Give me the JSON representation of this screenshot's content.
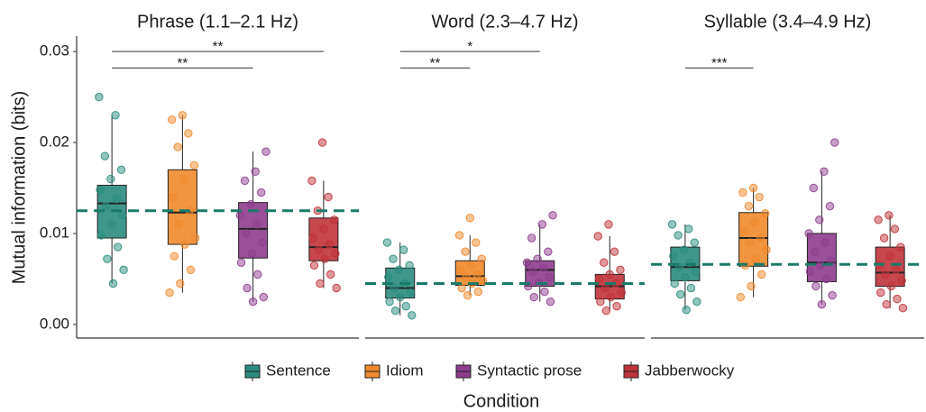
{
  "chart_data": {
    "type": "boxplot",
    "y_label": "Mutual information (bits)",
    "x_label": "Condition",
    "ylim": [
      -0.0015,
      0.0317
    ],
    "yticks": [
      {
        "value": 0,
        "label": "0.00"
      },
      {
        "value": 0.01,
        "label": "0.01"
      },
      {
        "value": 0.02,
        "label": "0.02"
      },
      {
        "value": 0.03,
        "label": "0.03"
      }
    ],
    "legend": "bottom",
    "series": [
      {
        "name": "Sentence",
        "color": "#2a8c7e"
      },
      {
        "name": "Idiom",
        "color": "#f08a2c"
      },
      {
        "name": "Syntactic prose",
        "color": "#8e3d8e"
      },
      {
        "name": "Jabberwocky",
        "color": "#c0333a"
      }
    ],
    "facets": [
      {
        "title": "Phrase (1.1–2.1 Hz)",
        "reference_line": 0.0125,
        "groups": [
          {
            "whisker_low": 0.0045,
            "q1": 0.0095,
            "median": 0.0133,
            "q3": 0.0153,
            "whisker_high": 0.023,
            "points": [
              0.025,
              0.023,
              0.0185,
              0.017,
              0.016,
              0.0148,
              0.0138,
              0.013,
              0.012,
              0.011,
              0.0098,
              0.0085,
              0.0072,
              0.006,
              0.0045
            ]
          },
          {
            "whisker_low": 0.0035,
            "q1": 0.0088,
            "median": 0.0123,
            "q3": 0.017,
            "whisker_high": 0.023,
            "points": [
              0.023,
              0.0225,
              0.021,
              0.0195,
              0.0175,
              0.016,
              0.014,
              0.0125,
              0.011,
              0.0095,
              0.0088,
              0.0075,
              0.006,
              0.0045,
              0.0035
            ]
          },
          {
            "whisker_low": 0.0025,
            "q1": 0.0073,
            "median": 0.0105,
            "q3": 0.0134,
            "whisker_high": 0.019,
            "points": [
              0.019,
              0.0168,
              0.0158,
              0.0145,
              0.0132,
              0.012,
              0.011,
              0.01,
              0.009,
              0.0078,
              0.0068,
              0.0055,
              0.004,
              0.003,
              0.0025
            ]
          },
          {
            "whisker_low": 0.004,
            "q1": 0.007,
            "median": 0.0085,
            "q3": 0.0117,
            "whisker_high": 0.0158,
            "points": [
              0.02,
              0.0158,
              0.014,
              0.0125,
              0.0115,
              0.0105,
              0.0095,
              0.0088,
              0.0082,
              0.0078,
              0.0072,
              0.0065,
              0.0055,
              0.0045,
              0.004
            ]
          }
        ],
        "brackets": [
          {
            "from": 0,
            "to": 3,
            "y": 0.03,
            "label": "**"
          },
          {
            "from": 0,
            "to": 2,
            "y": 0.0282,
            "label": "**"
          }
        ]
      },
      {
        "title": "Word (2.3–4.7 Hz)",
        "reference_line": 0.0045,
        "groups": [
          {
            "whisker_low": 0.001,
            "q1": 0.0029,
            "median": 0.004,
            "q3": 0.0062,
            "whisker_high": 0.009,
            "points": [
              0.009,
              0.0082,
              0.0072,
              0.0065,
              0.006,
              0.0052,
              0.0045,
              0.004,
              0.0035,
              0.003,
              0.0025,
              0.002,
              0.0015,
              0.001
            ]
          },
          {
            "whisker_low": 0.0032,
            "q1": 0.0043,
            "median": 0.0053,
            "q3": 0.007,
            "whisker_high": 0.0098,
            "points": [
              0.0117,
              0.0098,
              0.009,
              0.008,
              0.0072,
              0.0065,
              0.006,
              0.0055,
              0.0052,
              0.0048,
              0.0045,
              0.004,
              0.0036,
              0.0032
            ]
          },
          {
            "whisker_low": 0.0025,
            "q1": 0.0042,
            "median": 0.006,
            "q3": 0.007,
            "whisker_high": 0.011,
            "points": [
              0.012,
              0.011,
              0.0095,
              0.008,
              0.0072,
              0.0068,
              0.0062,
              0.0058,
              0.0052,
              0.0046,
              0.0042,
              0.0036,
              0.003,
              0.0025
            ]
          },
          {
            "whisker_low": 0.0015,
            "q1": 0.0028,
            "median": 0.0042,
            "q3": 0.0055,
            "whisker_high": 0.0097,
            "points": [
              0.011,
              0.0097,
              0.008,
              0.0068,
              0.006,
              0.0055,
              0.005,
              0.0045,
              0.004,
              0.0035,
              0.003,
              0.0025,
              0.002,
              0.0015
            ]
          }
        ],
        "brackets": [
          {
            "from": 0,
            "to": 2,
            "y": 0.03,
            "label": "*"
          },
          {
            "from": 0,
            "to": 1,
            "y": 0.0282,
            "label": "**"
          }
        ]
      },
      {
        "title": "Syllable (3.4–4.9 Hz)",
        "reference_line": 0.0066,
        "groups": [
          {
            "whisker_low": 0.0016,
            "q1": 0.0048,
            "median": 0.0063,
            "q3": 0.0085,
            "whisker_high": 0.011,
            "points": [
              0.011,
              0.0105,
              0.0098,
              0.009,
              0.0082,
              0.0075,
              0.0068,
              0.0063,
              0.0058,
              0.0052,
              0.0045,
              0.004,
              0.0033,
              0.0025,
              0.0016
            ]
          },
          {
            "whisker_low": 0.003,
            "q1": 0.0064,
            "median": 0.0095,
            "q3": 0.0123,
            "whisker_high": 0.015,
            "points": [
              0.015,
              0.0145,
              0.014,
              0.013,
              0.0122,
              0.0112,
              0.0103,
              0.0095,
              0.009,
              0.0082,
              0.0072,
              0.0065,
              0.0055,
              0.0042,
              0.003
            ]
          },
          {
            "whisker_low": 0.0022,
            "q1": 0.0047,
            "median": 0.0068,
            "q3": 0.01,
            "whisker_high": 0.0168,
            "points": [
              0.02,
              0.0168,
              0.015,
              0.013,
              0.0115,
              0.01,
              0.009,
              0.008,
              0.007,
              0.0065,
              0.0058,
              0.005,
              0.0042,
              0.0032,
              0.0022
            ]
          },
          {
            "whisker_low": 0.0018,
            "q1": 0.0042,
            "median": 0.0057,
            "q3": 0.0085,
            "whisker_high": 0.012,
            "points": [
              0.012,
              0.0115,
              0.0105,
              0.0095,
              0.0085,
              0.0075,
              0.0065,
              0.006,
              0.0055,
              0.0048,
              0.0042,
              0.0035,
              0.0028,
              0.0022,
              0.0018
            ]
          }
        ],
        "brackets": [
          {
            "from": 0,
            "to": 1,
            "y": 0.0282,
            "label": "***"
          }
        ]
      }
    ]
  }
}
